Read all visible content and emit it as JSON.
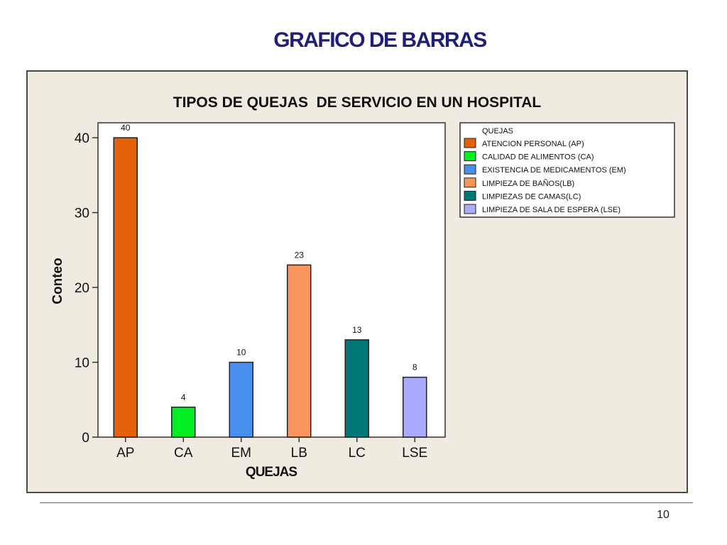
{
  "slide": {
    "title": "GRAFICO DE BARRAS",
    "page_number": "10"
  },
  "chart_data": {
    "type": "bar",
    "title": "TIPOS DE QUEJAS  DE SERVICIO EN UN HOSPITAL",
    "xlabel": "QUEJAS",
    "ylabel": "Conteo",
    "categories": [
      "AP",
      "CA",
      "EM",
      "LB",
      "LC",
      "LSE"
    ],
    "values": [
      40,
      4,
      10,
      23,
      13,
      8
    ],
    "data_labels": [
      "40",
      "4",
      "10",
      "23",
      "13",
      "8"
    ],
    "colors": [
      "#e36209",
      "#00ee22",
      "#4a8fee",
      "#f9955e",
      "#00787a",
      "#aaaaff"
    ],
    "ylim": [
      0,
      42
    ],
    "yticks": [
      0,
      10,
      20,
      30,
      40
    ],
    "grid": false,
    "legend": {
      "position": "top-right",
      "title": "QUEJAS",
      "entries": [
        "ATENCION PERSONAL (AP)",
        "CALIDAD DE ALIMENTOS (CA)",
        "EXISTENCIA DE MEDICAMENTOS (EM)",
        "LIMPIEZA DE BAÑOS(LB)",
        "LIMPIEZAS DE CAMAS(LC)",
        "LIMPIEZA DE SALA DE ESPERA (LSE)"
      ]
    }
  }
}
